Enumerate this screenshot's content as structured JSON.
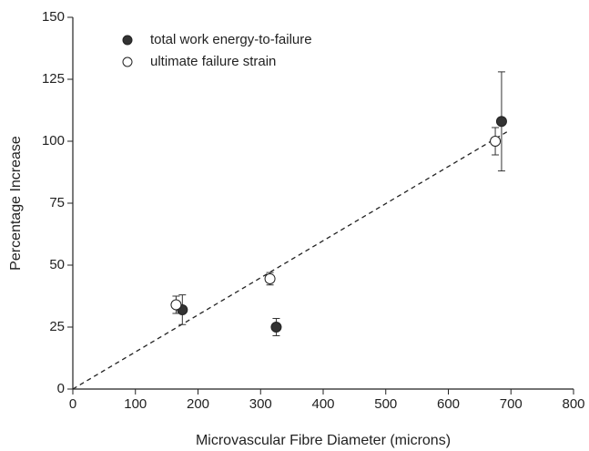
{
  "chart_data": {
    "type": "scatter",
    "x_label": "Microvascular Fibre Diameter (microns)",
    "y_label": "Percentage Increase",
    "xlim": [
      0,
      800
    ],
    "xticks": [
      0,
      100,
      200,
      300,
      400,
      500,
      600,
      700,
      800
    ],
    "ylim": [
      0,
      150
    ],
    "yticks": [
      0,
      25,
      50,
      75,
      100,
      125,
      150
    ],
    "legend": "upper left",
    "series": [
      {
        "name": "total work energy-to-failure",
        "color": "#333333",
        "x": [
          175,
          325,
          685
        ],
        "values": [
          32,
          25,
          108
        ],
        "errors": [
          6,
          3.5,
          20
        ]
      },
      {
        "name": "ultimate failure strain",
        "color": "#ffffff",
        "x": [
          165,
          315,
          675
        ],
        "values": [
          34,
          44.5,
          100
        ],
        "errors": [
          3.5,
          2.5,
          5.5
        ]
      }
    ],
    "trend_line": {
      "x": [
        0,
        695
      ],
      "y": [
        0,
        104
      ]
    }
  }
}
